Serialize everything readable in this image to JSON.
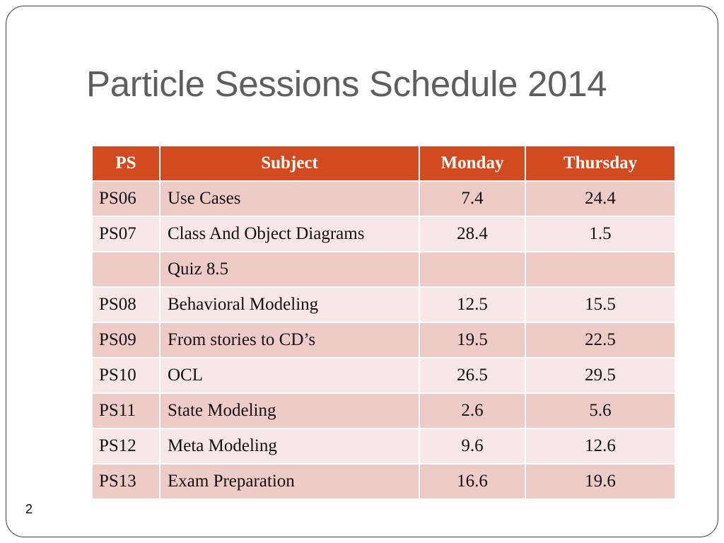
{
  "slide": {
    "title": "Particle Sessions Schedule 2014",
    "page_number": "2"
  },
  "table": {
    "headers": {
      "ps": "PS",
      "subject": "Subject",
      "monday": "Monday",
      "thursday": "Thursday"
    },
    "rows": [
      {
        "ps": "PS06",
        "subject": "Use Cases",
        "monday": "7.4",
        "thursday": "24.4"
      },
      {
        "ps": "PS07",
        "subject": "Class And Object Diagrams",
        "monday": "28.4",
        "thursday": "1.5"
      },
      {
        "ps": "",
        "subject": "Quiz 8.5",
        "monday": "",
        "thursday": ""
      },
      {
        "ps": "PS08",
        "subject": "Behavioral Modeling",
        "monday": "12.5",
        "thursday": "15.5"
      },
      {
        "ps": "PS09",
        "subject": "From stories to CD’s",
        "monday": "19.5",
        "thursday": "22.5"
      },
      {
        "ps": "PS10",
        "subject": "OCL",
        "monday": "26.5",
        "thursday": "29.5"
      },
      {
        "ps": "PS11",
        "subject": "State Modeling",
        "monday": "2.6",
        "thursday": "5.6"
      },
      {
        "ps": "PS12",
        "subject": "Meta Modeling",
        "monday": "9.6",
        "thursday": "12.6"
      },
      {
        "ps": "PS13",
        "subject": "Exam Preparation",
        "monday": "16.6",
        "thursday": "19.6"
      }
    ]
  },
  "colors": {
    "header_background": "#d24a1f",
    "row_odd": "#efcbc8",
    "row_even": "#f7e7e6",
    "title_text": "#5e5e5e"
  }
}
